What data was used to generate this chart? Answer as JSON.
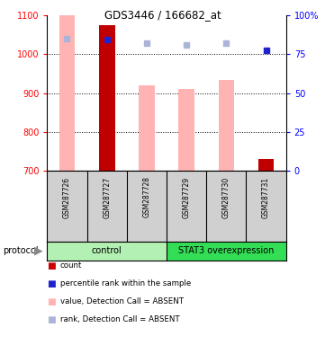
{
  "title": "GDS3446 / 166682_at",
  "samples": [
    "GSM287726",
    "GSM287727",
    "GSM287728",
    "GSM287729",
    "GSM287730",
    "GSM287731"
  ],
  "ylim_left": [
    700,
    1100
  ],
  "ylim_right": [
    0,
    100
  ],
  "yticks_left": [
    700,
    800,
    900,
    1000,
    1100
  ],
  "yticks_right": [
    0,
    25,
    50,
    75,
    100
  ],
  "bar_values": [
    1100,
    1075,
    920,
    910,
    935,
    730
  ],
  "bar_colors": [
    "#ffb3b3",
    "#c00000",
    "#ffb3b3",
    "#ffb3b3",
    "#ffb3b3",
    "#c00000"
  ],
  "sq_values_left": [
    1040,
    1038,
    1028,
    1025,
    1030,
    1010
  ],
  "sq_colors": [
    "#aab4d8",
    "#2222cc",
    "#aab4d8",
    "#aab4d8",
    "#aab4d8",
    "#2222cc"
  ],
  "grp_colors": [
    "#b3f0b3",
    "#33dd55"
  ],
  "grp_labels": [
    "control",
    "STAT3 overexpression"
  ],
  "grp_boundaries": [
    0,
    3,
    6
  ],
  "legend_colors": [
    "#cc0000",
    "#2222cc",
    "#ffb3b3",
    "#aab4d8"
  ],
  "legend_labels": [
    "count",
    "percentile rank within the sample",
    "value, Detection Call = ABSENT",
    "rank, Detection Call = ABSENT"
  ]
}
